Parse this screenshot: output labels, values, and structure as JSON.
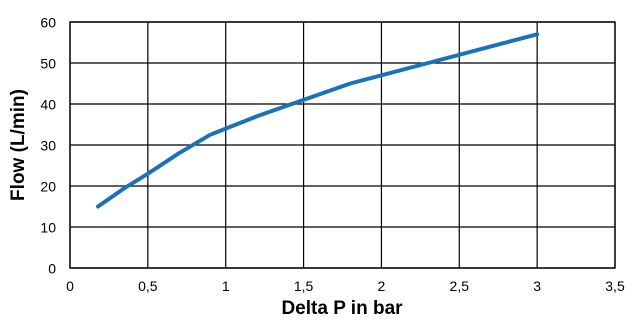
{
  "chart_data": {
    "type": "line",
    "xlabel": "Delta P in bar",
    "ylabel": "Flow (L/min)",
    "xlim": [
      0,
      3.5
    ],
    "ylim": [
      0,
      60
    ],
    "x_ticks": [
      0,
      0.5,
      1,
      1.5,
      2,
      2.5,
      3,
      3.5
    ],
    "x_tick_labels": [
      "0",
      "0,5",
      "1",
      "1,5",
      "2",
      "2,5",
      "3",
      "3,5"
    ],
    "y_ticks": [
      0,
      10,
      20,
      30,
      40,
      50,
      60
    ],
    "y_tick_labels": [
      "0",
      "10",
      "20",
      "30",
      "40",
      "50",
      "60"
    ],
    "grid": true,
    "series": [
      {
        "color": "#1a73b8",
        "x": [
          0.18,
          0.35,
          0.5,
          0.7,
          0.9,
          1.0,
          1.2,
          1.5,
          1.8,
          2.0,
          2.3,
          2.6,
          3.0
        ],
        "y": [
          15,
          19.5,
          23,
          28,
          32.5,
          34,
          37,
          41,
          45,
          47,
          50,
          53,
          57
        ]
      }
    ]
  }
}
